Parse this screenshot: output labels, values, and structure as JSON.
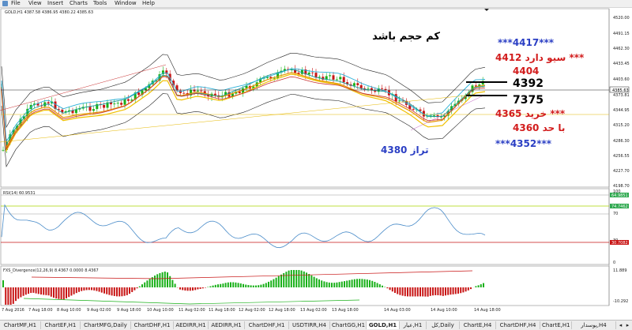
{
  "menu": {
    "items": [
      "File",
      "View",
      "Insert",
      "Charts",
      "Tools",
      "Window",
      "Help"
    ]
  },
  "main": {
    "header": "GOLD,H1  4387.58 4386.95 4380.22 4385.63",
    "title": "کم حجم باشد"
  },
  "price_axis": {
    "labels": [
      "4520.00",
      "4491.15",
      "4462.30",
      "4433.45",
      "4403.60",
      "4373.81",
      "4344.95",
      "4315.20",
      "4286.30",
      "4256.55",
      "4227.70",
      "4198.70"
    ],
    "current": "4385.63"
  },
  "annotations": [
    {
      "text": "***4417***",
      "color": "#2b3fc4"
    },
    {
      "text": "سیو دارد 4412 ***",
      "color": "#d21c1c"
    },
    {
      "text": "4404",
      "color": "#d21c1c"
    },
    {
      "text": "4392",
      "color": "#000000"
    },
    {
      "text": "7375",
      "color": "#000000"
    },
    {
      "text": "خرید 4365 ***",
      "color": "#d21c1c"
    },
    {
      "text": "با حد 4360",
      "color": "#d21c1c"
    },
    {
      "text": "***4352***",
      "color": "#2b3fc4"
    },
    {
      "text": "تراز 4380",
      "color": "#2b3fc4"
    }
  ],
  "rsi": {
    "label": "RSI(14) 60.9531",
    "axis": [
      "100",
      "70",
      "30",
      "0"
    ],
    "values": [
      "64.9851",
      "74.7462",
      "30.7082"
    ]
  },
  "macd": {
    "label": "FXS_Divergence(12,26,9) 8.4367 0.0000 8.4367",
    "axis": [
      "11.889",
      "-10.292"
    ]
  },
  "time_axis": [
    "7 Aug 2016",
    "7 Aug 18:00",
    "8 Aug 10:00",
    "9 Aug 02:00",
    "9 Aug 18:00",
    "10 Aug 10:00",
    "11 Aug 02:00",
    "11 Aug 18:00",
    "12 Aug 02:00",
    "12 Aug 18:00",
    "13 Aug 02:00",
    "13 Aug 18:00",
    "14 Aug 03:00",
    "14 Aug 10:00",
    "14 Aug 18:00"
  ],
  "tabs": [
    "ChartMF,H1",
    "ChartEF,H1",
    "ChartMFG,Daily",
    "ChartDHF,H1",
    "AEDIRR,H1",
    "AEDIRR,H1",
    "ChartDHF,H1",
    "USDTIRR,H4",
    "ChartGG,H1",
    "GOLD,H1",
    "عیار,H1",
    "کل,Daily",
    "ChartE,H4",
    "ChartDHF,H4",
    "ChartE,H1",
    "پوسدار,H4"
  ],
  "active_tab": "GOLD,H1",
  "colors": {
    "bull": "#19b019",
    "bear": "#c81414",
    "accent_blue": "#2b3fc4",
    "accent_red": "#d21c1c"
  }
}
